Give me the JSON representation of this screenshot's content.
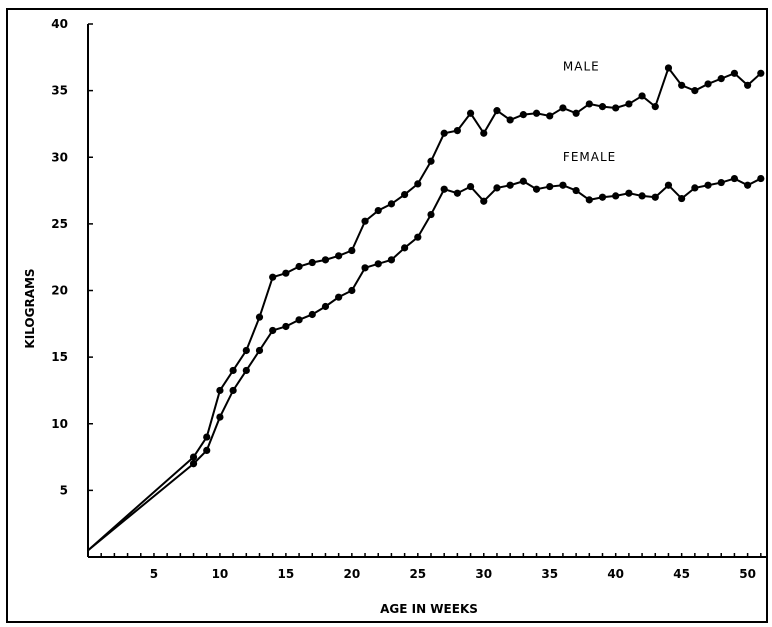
{
  "chart_data": {
    "type": "line",
    "title": "",
    "xlabel": "AGE IN WEEKS",
    "ylabel": "KILOGRAMS",
    "xlim": [
      0,
      52
    ],
    "ylim": [
      0,
      40
    ],
    "x_ticks": [
      5,
      10,
      15,
      20,
      25,
      30,
      35,
      40,
      45,
      50
    ],
    "y_ticks": [
      5,
      10,
      15,
      20,
      25,
      30,
      35,
      40
    ],
    "grid": false,
    "series": [
      {
        "name": "MALE",
        "x": [
          0,
          8,
          9,
          10,
          11,
          12,
          13,
          14,
          15,
          16,
          17,
          18,
          19,
          20,
          21,
          22,
          23,
          24,
          25,
          26,
          27,
          28,
          29,
          30,
          31,
          32,
          33,
          34,
          35,
          36,
          37,
          38,
          39,
          40,
          41,
          42,
          43,
          44,
          45,
          46,
          47,
          48,
          49,
          50,
          51
        ],
        "values": [
          0.5,
          7.5,
          9,
          12.5,
          14,
          15.5,
          18,
          21,
          21.3,
          21.8,
          22.1,
          22.3,
          22.6,
          23,
          25.2,
          26,
          26.5,
          27.2,
          28,
          29.7,
          31.8,
          32,
          33.3,
          31.8,
          33.5,
          32.8,
          33.2,
          33.3,
          33.1,
          33.7,
          33.3,
          34,
          33.8,
          33.7,
          34,
          34.6,
          33.8,
          36.7,
          35.4,
          35,
          35.5,
          35.9,
          36.3,
          35.4,
          36.3
        ]
      },
      {
        "name": "FEMALE",
        "x": [
          0,
          8,
          9,
          10,
          11,
          12,
          13,
          14,
          15,
          16,
          17,
          18,
          19,
          20,
          21,
          22,
          23,
          24,
          25,
          26,
          27,
          28,
          29,
          30,
          31,
          32,
          33,
          34,
          35,
          36,
          37,
          38,
          39,
          40,
          41,
          42,
          43,
          44,
          45,
          46,
          47,
          48,
          49,
          50,
          51
        ],
        "values": [
          0.5,
          7,
          8,
          10.5,
          12.5,
          14,
          15.5,
          17,
          17.3,
          17.8,
          18.2,
          18.8,
          19.5,
          20,
          21.7,
          22,
          22.3,
          23.2,
          24,
          25.7,
          27.6,
          27.3,
          27.8,
          26.7,
          27.7,
          27.9,
          28.2,
          27.6,
          27.8,
          27.9,
          27.5,
          26.8,
          27,
          27.1,
          27.3,
          27.1,
          27,
          27.9,
          26.9,
          27.7,
          27.9,
          28.1,
          28.4,
          27.9,
          28.4
        ]
      }
    ],
    "series_labels": [
      {
        "text": "MALE",
        "x": 36,
        "y": 36.5
      },
      {
        "text": "FEMALE",
        "x": 36,
        "y": 29.7
      }
    ]
  }
}
